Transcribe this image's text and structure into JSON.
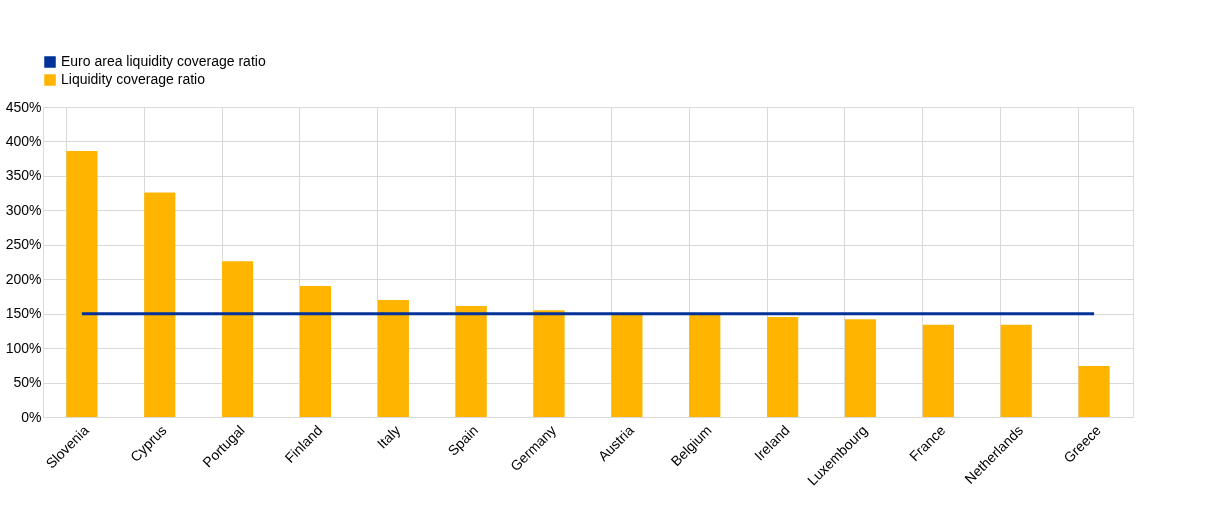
{
  "chart_data": {
    "type": "bar",
    "categories": [
      "Slovenia",
      "Cyprus",
      "Portugal",
      "Finland",
      "Italy",
      "Spain",
      "Germany",
      "Austria",
      "Belgium",
      "Ireland",
      "Luxembourg",
      "France",
      "Netherlands",
      "Greece"
    ],
    "series": [
      {
        "name": "Euro area liquidity coverage ratio",
        "type": "line",
        "color": "#003299",
        "values": [
          150,
          150,
          150,
          150,
          150,
          150,
          150,
          150,
          150,
          150,
          150,
          150,
          150,
          150
        ]
      },
      {
        "name": "Liquidity coverage ratio",
        "color": "#ffb400",
        "values": [
          386,
          326,
          226,
          190,
          170,
          161,
          155,
          150,
          150,
          145,
          142,
          134,
          134,
          74
        ]
      }
    ],
    "ylim": [
      0,
      450
    ],
    "yticks": [
      {
        "value": 0,
        "label": "0%"
      },
      {
        "value": 50,
        "label": "50%"
      },
      {
        "value": 100,
        "label": "100%"
      },
      {
        "value": 150,
        "label": "150%"
      },
      {
        "value": 200,
        "label": "200%"
      },
      {
        "value": 250,
        "label": "250%"
      },
      {
        "value": 300,
        "label": "300%"
      },
      {
        "value": 350,
        "label": "350%"
      },
      {
        "value": 400,
        "label": "400%"
      },
      {
        "value": 450,
        "label": "450%"
      }
    ],
    "grid": true,
    "legend": "top left",
    "marker": "none",
    "line_style": "solid"
  }
}
